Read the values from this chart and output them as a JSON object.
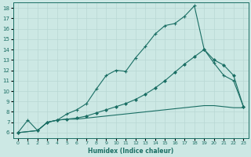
{
  "xlabel": "Humidex (Indice chaleur)",
  "bg_color": "#cce8e4",
  "line_color": "#1a6e64",
  "grid_color": "#b8d8d4",
  "xlim": [
    -0.5,
    23.5
  ],
  "ylim": [
    5.5,
    18.5
  ],
  "xticks": [
    0,
    1,
    2,
    3,
    4,
    5,
    6,
    7,
    8,
    9,
    10,
    11,
    12,
    13,
    14,
    15,
    16,
    17,
    18,
    19,
    20,
    21,
    22,
    23
  ],
  "yticks": [
    6,
    7,
    8,
    9,
    10,
    11,
    12,
    13,
    14,
    15,
    16,
    17,
    18
  ],
  "curve1_x": [
    0,
    1,
    2,
    3,
    4,
    5,
    6,
    7,
    8,
    9,
    10,
    11,
    12,
    13,
    14,
    15,
    16,
    17,
    18,
    19,
    20,
    21,
    22,
    23
  ],
  "curve1_y": [
    6.0,
    7.2,
    6.2,
    7.0,
    7.2,
    7.8,
    8.2,
    8.8,
    10.2,
    11.5,
    12.0,
    11.9,
    13.2,
    14.3,
    15.5,
    16.3,
    16.5,
    17.2,
    18.2,
    14.0,
    12.7,
    11.5,
    11.0,
    8.5
  ],
  "curve2_x": [
    0,
    2,
    3,
    4,
    5,
    6,
    7,
    8,
    9,
    10,
    11,
    12,
    13,
    14,
    15,
    16,
    17,
    18,
    19,
    20,
    21,
    22,
    23
  ],
  "curve2_y": [
    6.0,
    6.2,
    7.0,
    7.2,
    7.3,
    7.4,
    7.6,
    7.9,
    8.2,
    8.5,
    8.8,
    9.2,
    9.7,
    10.3,
    11.0,
    11.8,
    12.6,
    13.3,
    14.0,
    13.0,
    12.5,
    11.5,
    8.5
  ],
  "curve3_x": [
    0,
    2,
    3,
    4,
    5,
    6,
    7,
    8,
    9,
    10,
    11,
    12,
    13,
    14,
    15,
    16,
    17,
    18,
    19,
    20,
    21,
    22,
    23
  ],
  "curve3_y": [
    6.0,
    6.2,
    7.0,
    7.2,
    7.3,
    7.3,
    7.4,
    7.5,
    7.6,
    7.7,
    7.8,
    7.9,
    8.0,
    8.1,
    8.2,
    8.3,
    8.4,
    8.5,
    8.6,
    8.6,
    8.5,
    8.4,
    8.4
  ]
}
